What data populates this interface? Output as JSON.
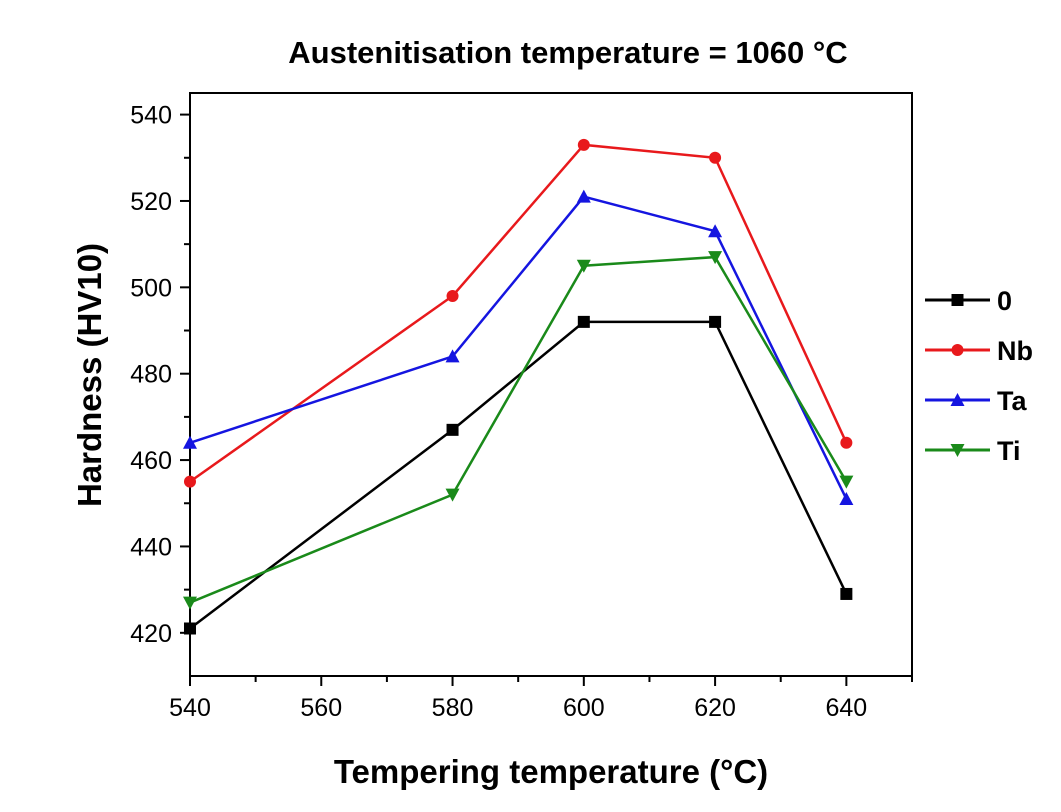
{
  "chart_data": {
    "type": "line",
    "title": "Austenitisation temperature = 1060 °C",
    "xlabel": "Tempering temperature (°C)",
    "ylabel": "Hardness (HV10)",
    "xlim": [
      540,
      650
    ],
    "ylim": [
      410,
      545
    ],
    "xticks": [
      540,
      560,
      580,
      600,
      620,
      640
    ],
    "yticks": [
      420,
      440,
      460,
      480,
      500,
      520,
      540
    ],
    "x": [
      540,
      580,
      600,
      620,
      640
    ],
    "grid": false,
    "legend_position": "right",
    "series": [
      {
        "name": "0",
        "color": "#000000",
        "marker": "square",
        "values": [
          421,
          467,
          492,
          492,
          429
        ]
      },
      {
        "name": "Nb",
        "color": "#e8191c",
        "marker": "circle",
        "values": [
          455,
          498,
          533,
          530,
          464
        ]
      },
      {
        "name": "Ta",
        "color": "#1515e0",
        "marker": "triangle-up",
        "values": [
          464,
          484,
          521,
          513,
          451
        ]
      },
      {
        "name": "Ti",
        "color": "#1a8a1a",
        "marker": "triangle-down",
        "values": [
          427,
          452,
          505,
          507,
          455
        ]
      }
    ]
  }
}
